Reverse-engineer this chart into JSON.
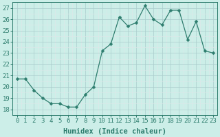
{
  "x": [
    0,
    1,
    2,
    3,
    4,
    5,
    6,
    7,
    8,
    9,
    10,
    11,
    12,
    13,
    14,
    15,
    16,
    17,
    18,
    19,
    20,
    21,
    22,
    23
  ],
  "y": [
    20.7,
    20.7,
    19.7,
    19.0,
    18.5,
    18.5,
    18.2,
    18.2,
    19.3,
    20.0,
    23.2,
    23.8,
    26.2,
    25.4,
    25.7,
    27.2,
    26.0,
    25.5,
    26.8,
    26.8,
    24.2,
    25.8,
    23.2,
    23.0
  ],
  "line_color": "#2e7d6e",
  "marker": "D",
  "marker_size": 2.5,
  "bg_color": "#cceee8",
  "grid_major_color": "#aacccc",
  "grid_minor_color": "#dde8e8",
  "xlabel": "Humidex (Indice chaleur)",
  "ylabel_ticks": [
    18,
    19,
    20,
    21,
    22,
    23,
    24,
    25,
    26,
    27
  ],
  "xlim": [
    -0.5,
    23.5
  ],
  "ylim": [
    17.5,
    27.5
  ],
  "tick_color": "#2e7d6e",
  "label_color": "#2e7d6e",
  "font_size_label": 7.5,
  "font_size_tick": 6.5
}
